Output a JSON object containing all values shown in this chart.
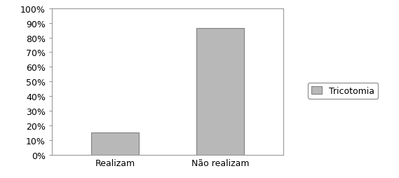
{
  "categories": [
    "Realizam",
    "Não realizam"
  ],
  "values": [
    0.15,
    0.866
  ],
  "bar_color": "#b8b8b8",
  "bar_edgecolor": "#808080",
  "ylim": [
    0,
    1.0
  ],
  "yticks": [
    0.0,
    0.1,
    0.2,
    0.3,
    0.4,
    0.5,
    0.6,
    0.7,
    0.8,
    0.9,
    1.0
  ],
  "ytick_labels": [
    "0%",
    "10%",
    "20%",
    "30%",
    "40%",
    "50%",
    "60%",
    "70%",
    "80%",
    "90%",
    "100%"
  ],
  "legend_label": "Tricotomia",
  "background_color": "#ffffff",
  "bar_width": 0.45,
  "spine_color": "#999999",
  "tick_color": "#555555",
  "label_fontsize": 9,
  "figsize": [
    5.69,
    2.55
  ],
  "dpi": 100
}
